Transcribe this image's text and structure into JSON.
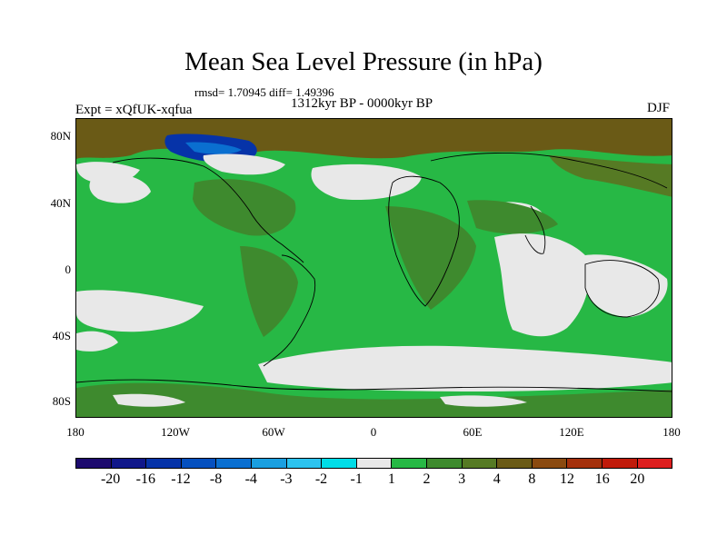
{
  "title": "Mean Sea Level Pressure (in hPa)",
  "stats": "rmsd= 1.70945 diff= 1.49396",
  "period": "1312kyr BP - 0000kyr BP",
  "experiment": "Expt = xQfUK-xqfua",
  "season": "DJF",
  "lat_labels": [
    "80N",
    "40N",
    "0",
    "40S",
    "80S"
  ],
  "lon_labels": [
    "180",
    "120W",
    "60W",
    "0",
    "60E",
    "120E",
    "180"
  ],
  "colorbar": {
    "labels": [
      "-20",
      "-16",
      "-12",
      "-8",
      "-4",
      "-3",
      "-2",
      "-1",
      "1",
      "2",
      "3",
      "4",
      "8",
      "12",
      "16",
      "20"
    ],
    "colors": [
      "#1d0a6e",
      "#10178a",
      "#0633a8",
      "#0550bf",
      "#0a6fd0",
      "#1a9fe0",
      "#2cc3ef",
      "#00dde8",
      "#e8e8e8",
      "#27b845",
      "#3e8a2e",
      "#567a24",
      "#6a5a16",
      "#8a4a10",
      "#a4300c",
      "#c01a0a",
      "#dd1f1f"
    ]
  }
}
